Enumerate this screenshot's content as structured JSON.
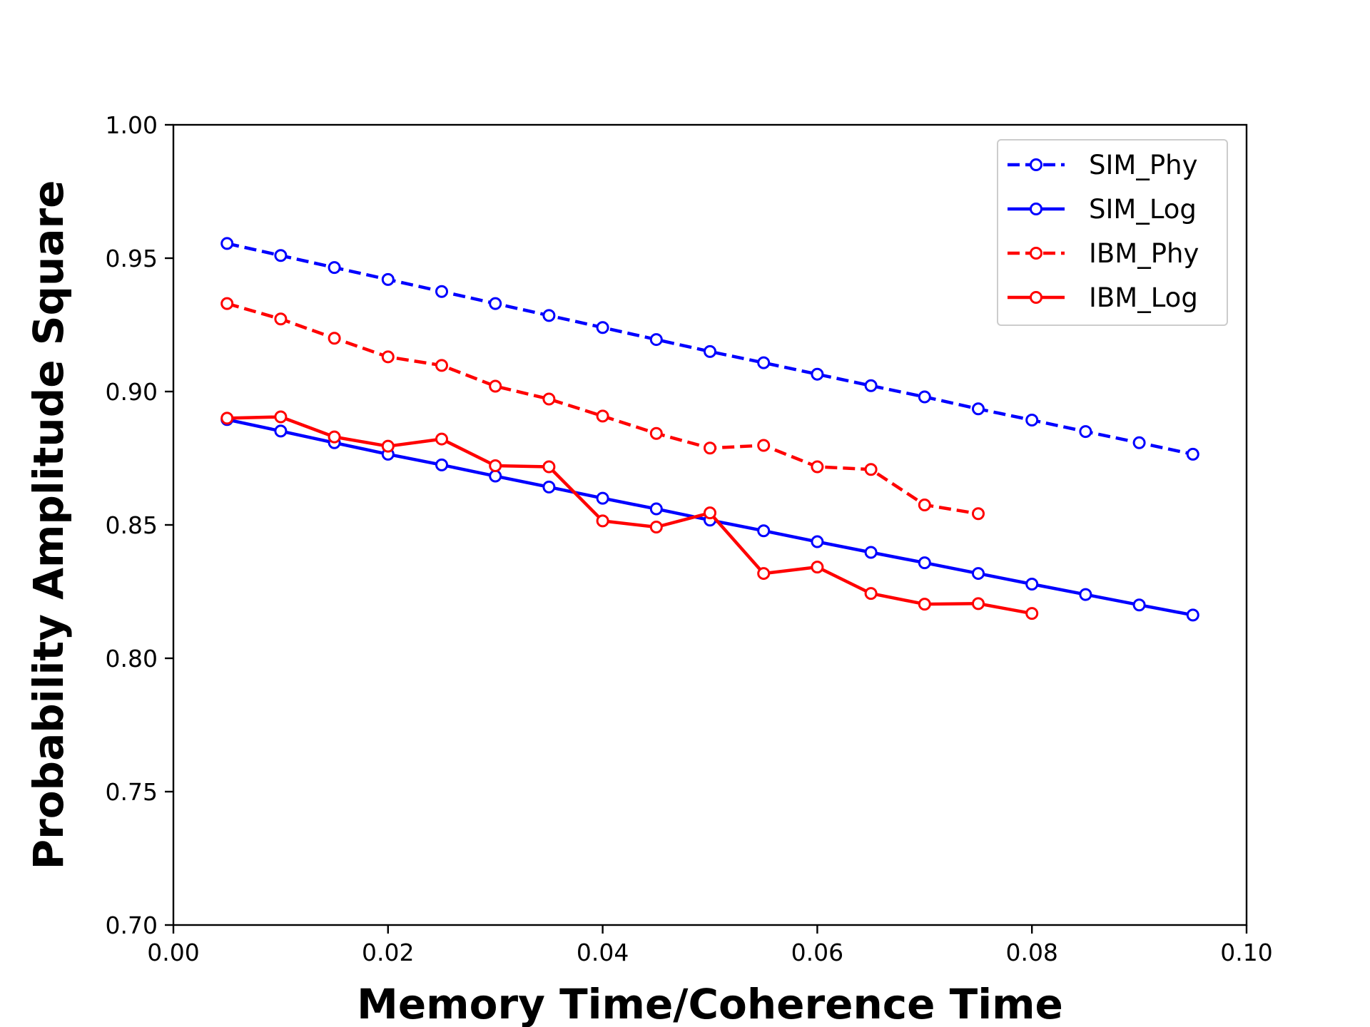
{
  "chart_data": {
    "type": "line",
    "title": "",
    "xlabel": "Memory Time/Coherence Time",
    "ylabel": "Probability Amplitude Square",
    "xlim": [
      0.0,
      0.1
    ],
    "ylim": [
      0.7,
      1.0
    ],
    "x_ticks": [
      "0.00",
      "0.02",
      "0.04",
      "0.06",
      "0.08",
      "0.10"
    ],
    "y_ticks": [
      "0.70",
      "0.75",
      "0.80",
      "0.85",
      "0.90",
      "0.95",
      "1.00"
    ],
    "grid": false,
    "legend_position": "top-right",
    "series": [
      {
        "name": "SIM_Phy",
        "color": "#0000ff",
        "line_style": "dashed",
        "marker": "open-circle",
        "x": [
          0.005,
          0.01,
          0.015,
          0.02,
          0.025,
          0.03,
          0.035,
          0.04,
          0.045,
          0.05,
          0.055,
          0.06,
          0.065,
          0.07,
          0.075,
          0.08,
          0.085,
          0.09,
          0.095
        ],
        "values": [
          0.9555,
          0.951,
          0.9465,
          0.942,
          0.9375,
          0.933,
          0.9285,
          0.924,
          0.9195,
          0.915,
          0.9108,
          0.9065,
          0.9022,
          0.898,
          0.8935,
          0.8893,
          0.885,
          0.8808,
          0.8765
        ]
      },
      {
        "name": "SIM_Log",
        "color": "#0000ff",
        "line_style": "solid",
        "marker": "open-circle",
        "x": [
          0.005,
          0.01,
          0.015,
          0.02,
          0.025,
          0.03,
          0.035,
          0.04,
          0.045,
          0.05,
          0.055,
          0.06,
          0.065,
          0.07,
          0.075,
          0.08,
          0.085,
          0.09,
          0.095
        ],
        "values": [
          0.8895,
          0.8852,
          0.8808,
          0.8765,
          0.8725,
          0.8683,
          0.8642,
          0.86,
          0.856,
          0.8518,
          0.8478,
          0.8437,
          0.8397,
          0.8358,
          0.8318,
          0.8278,
          0.8239,
          0.82,
          0.8162
        ]
      },
      {
        "name": "IBM_Phy",
        "color": "#ff0000",
        "line_style": "dashed",
        "marker": "open-circle",
        "x": [
          0.005,
          0.01,
          0.015,
          0.02,
          0.025,
          0.03,
          0.035,
          0.04,
          0.045,
          0.05,
          0.055,
          0.06,
          0.065,
          0.07,
          0.075
        ],
        "values": [
          0.933,
          0.9272,
          0.92,
          0.913,
          0.9098,
          0.902,
          0.8972,
          0.8908,
          0.8843,
          0.8788,
          0.8798,
          0.8718,
          0.8708,
          0.8575,
          0.8542
        ]
      },
      {
        "name": "IBM_Log",
        "color": "#ff0000",
        "line_style": "solid",
        "marker": "open-circle",
        "x": [
          0.005,
          0.01,
          0.015,
          0.02,
          0.025,
          0.03,
          0.035,
          0.04,
          0.045,
          0.05,
          0.055,
          0.06,
          0.065,
          0.07,
          0.075,
          0.08
        ],
        "values": [
          0.89,
          0.8905,
          0.883,
          0.8795,
          0.8822,
          0.8722,
          0.8718,
          0.8515,
          0.8492,
          0.8545,
          0.8318,
          0.8342,
          0.8243,
          0.8203,
          0.8205,
          0.8168
        ]
      }
    ]
  }
}
